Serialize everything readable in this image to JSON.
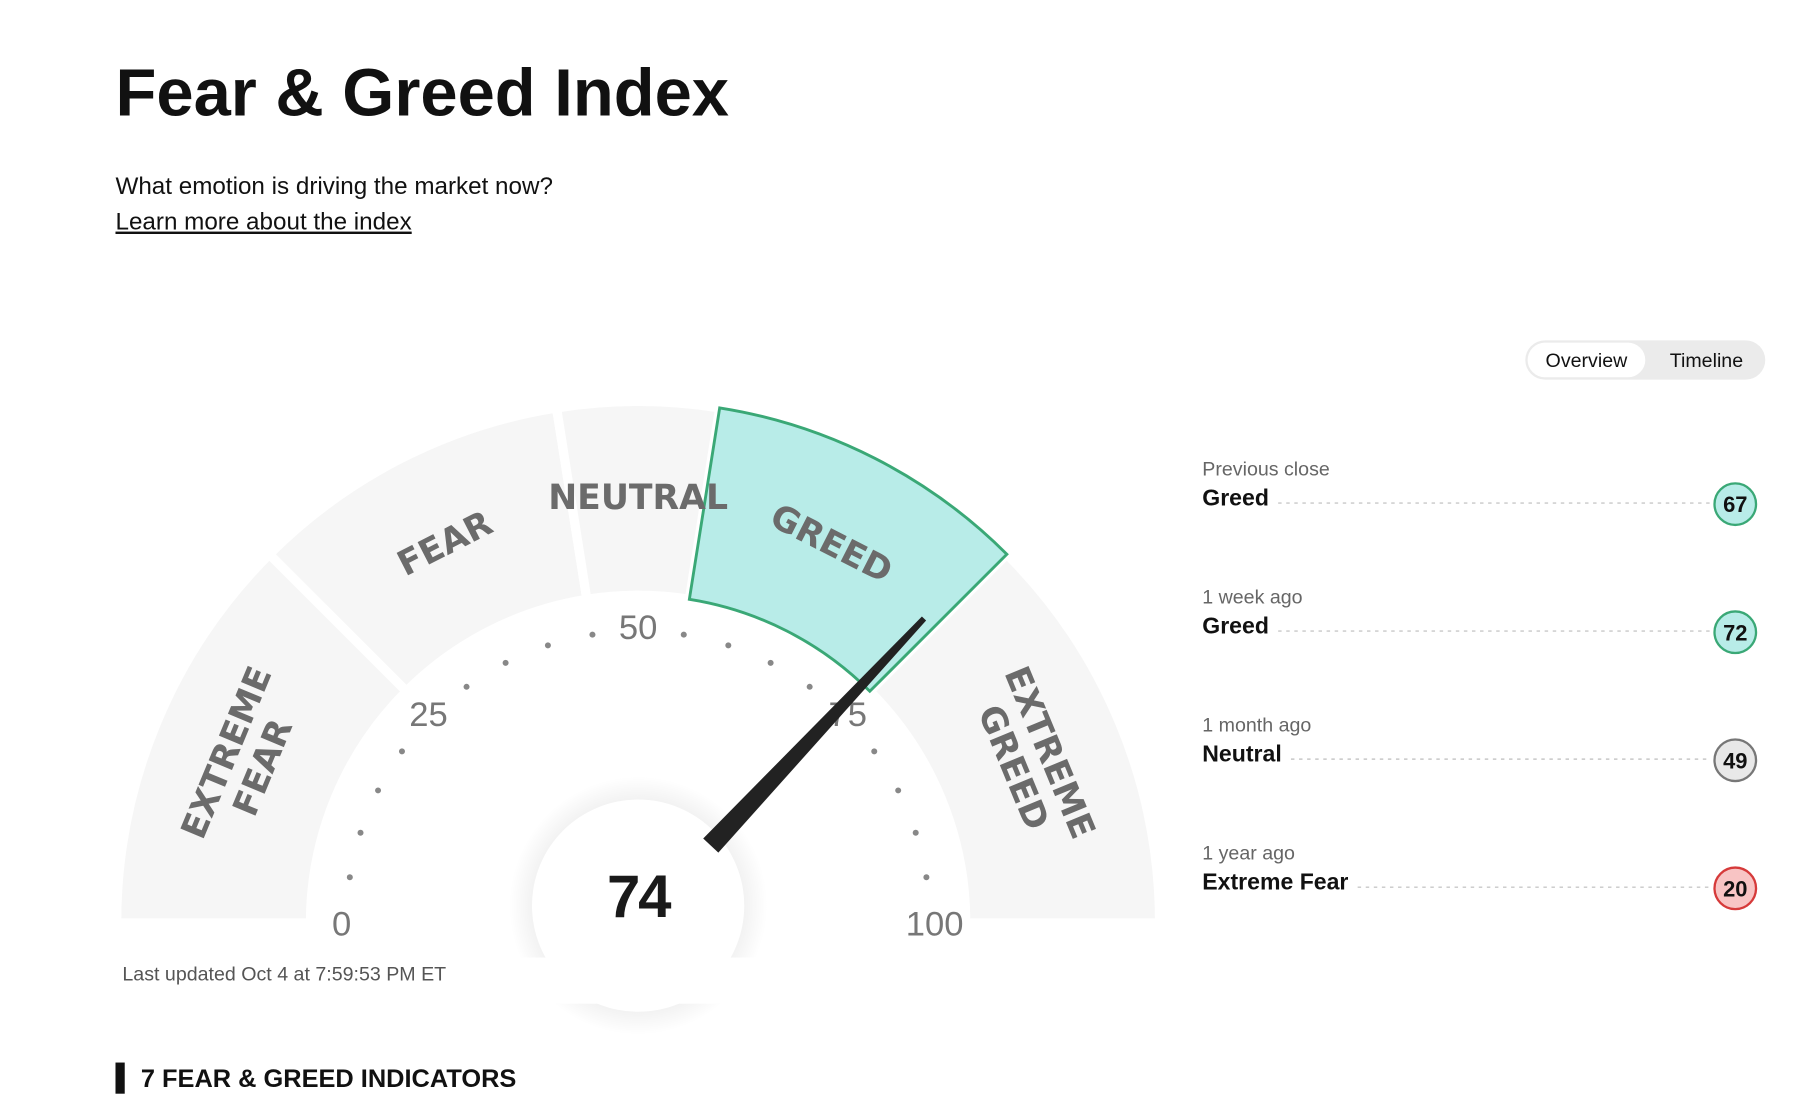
{
  "header": {
    "title": "Fear & Greed Index",
    "subtitle": "What emotion is driving the market now?",
    "link": "Learn more about the index"
  },
  "tabs": {
    "items": [
      "Overview",
      "Timeline"
    ],
    "active": "Overview"
  },
  "gauge": {
    "value": 74,
    "range": [
      0,
      100
    ],
    "ticks": [
      0,
      25,
      50,
      75,
      100
    ],
    "segments": [
      {
        "lines": [
          "EXTREME",
          "FEAR"
        ],
        "from": 0,
        "to": 25
      },
      {
        "lines": [
          "FEAR"
        ],
        "from": 25,
        "to": 45
      },
      {
        "lines": [
          "NEUTRAL"
        ],
        "from": 45,
        "to": 55
      },
      {
        "lines": [
          "GREED"
        ],
        "from": 55,
        "to": 75
      },
      {
        "lines": [
          "EXTREME",
          "GREED"
        ],
        "from": 75,
        "to": 100
      }
    ],
    "base_color": "#f6f6f6",
    "active_fill": "#b8ece8",
    "active_stroke": "#3aa876"
  },
  "history": [
    {
      "label": "Previous close",
      "rating": "Greed",
      "value": 67,
      "fill": "#b8ece8",
      "stroke": "#3aa876"
    },
    {
      "label": "1 week ago",
      "rating": "Greed",
      "value": 72,
      "fill": "#b8ece8",
      "stroke": "#3aa876"
    },
    {
      "label": "1 month ago",
      "rating": "Neutral",
      "value": 49,
      "fill": "#e8e8e8",
      "stroke": "#777777"
    },
    {
      "label": "1 year ago",
      "rating": "Extreme Fear",
      "value": 20,
      "fill": "#f8c4c4",
      "stroke": "#d63a3a"
    }
  ],
  "updated": "Last updated Oct 4 at 7:59:53 PM ET",
  "section": "7 FEAR & GREED INDICATORS"
}
